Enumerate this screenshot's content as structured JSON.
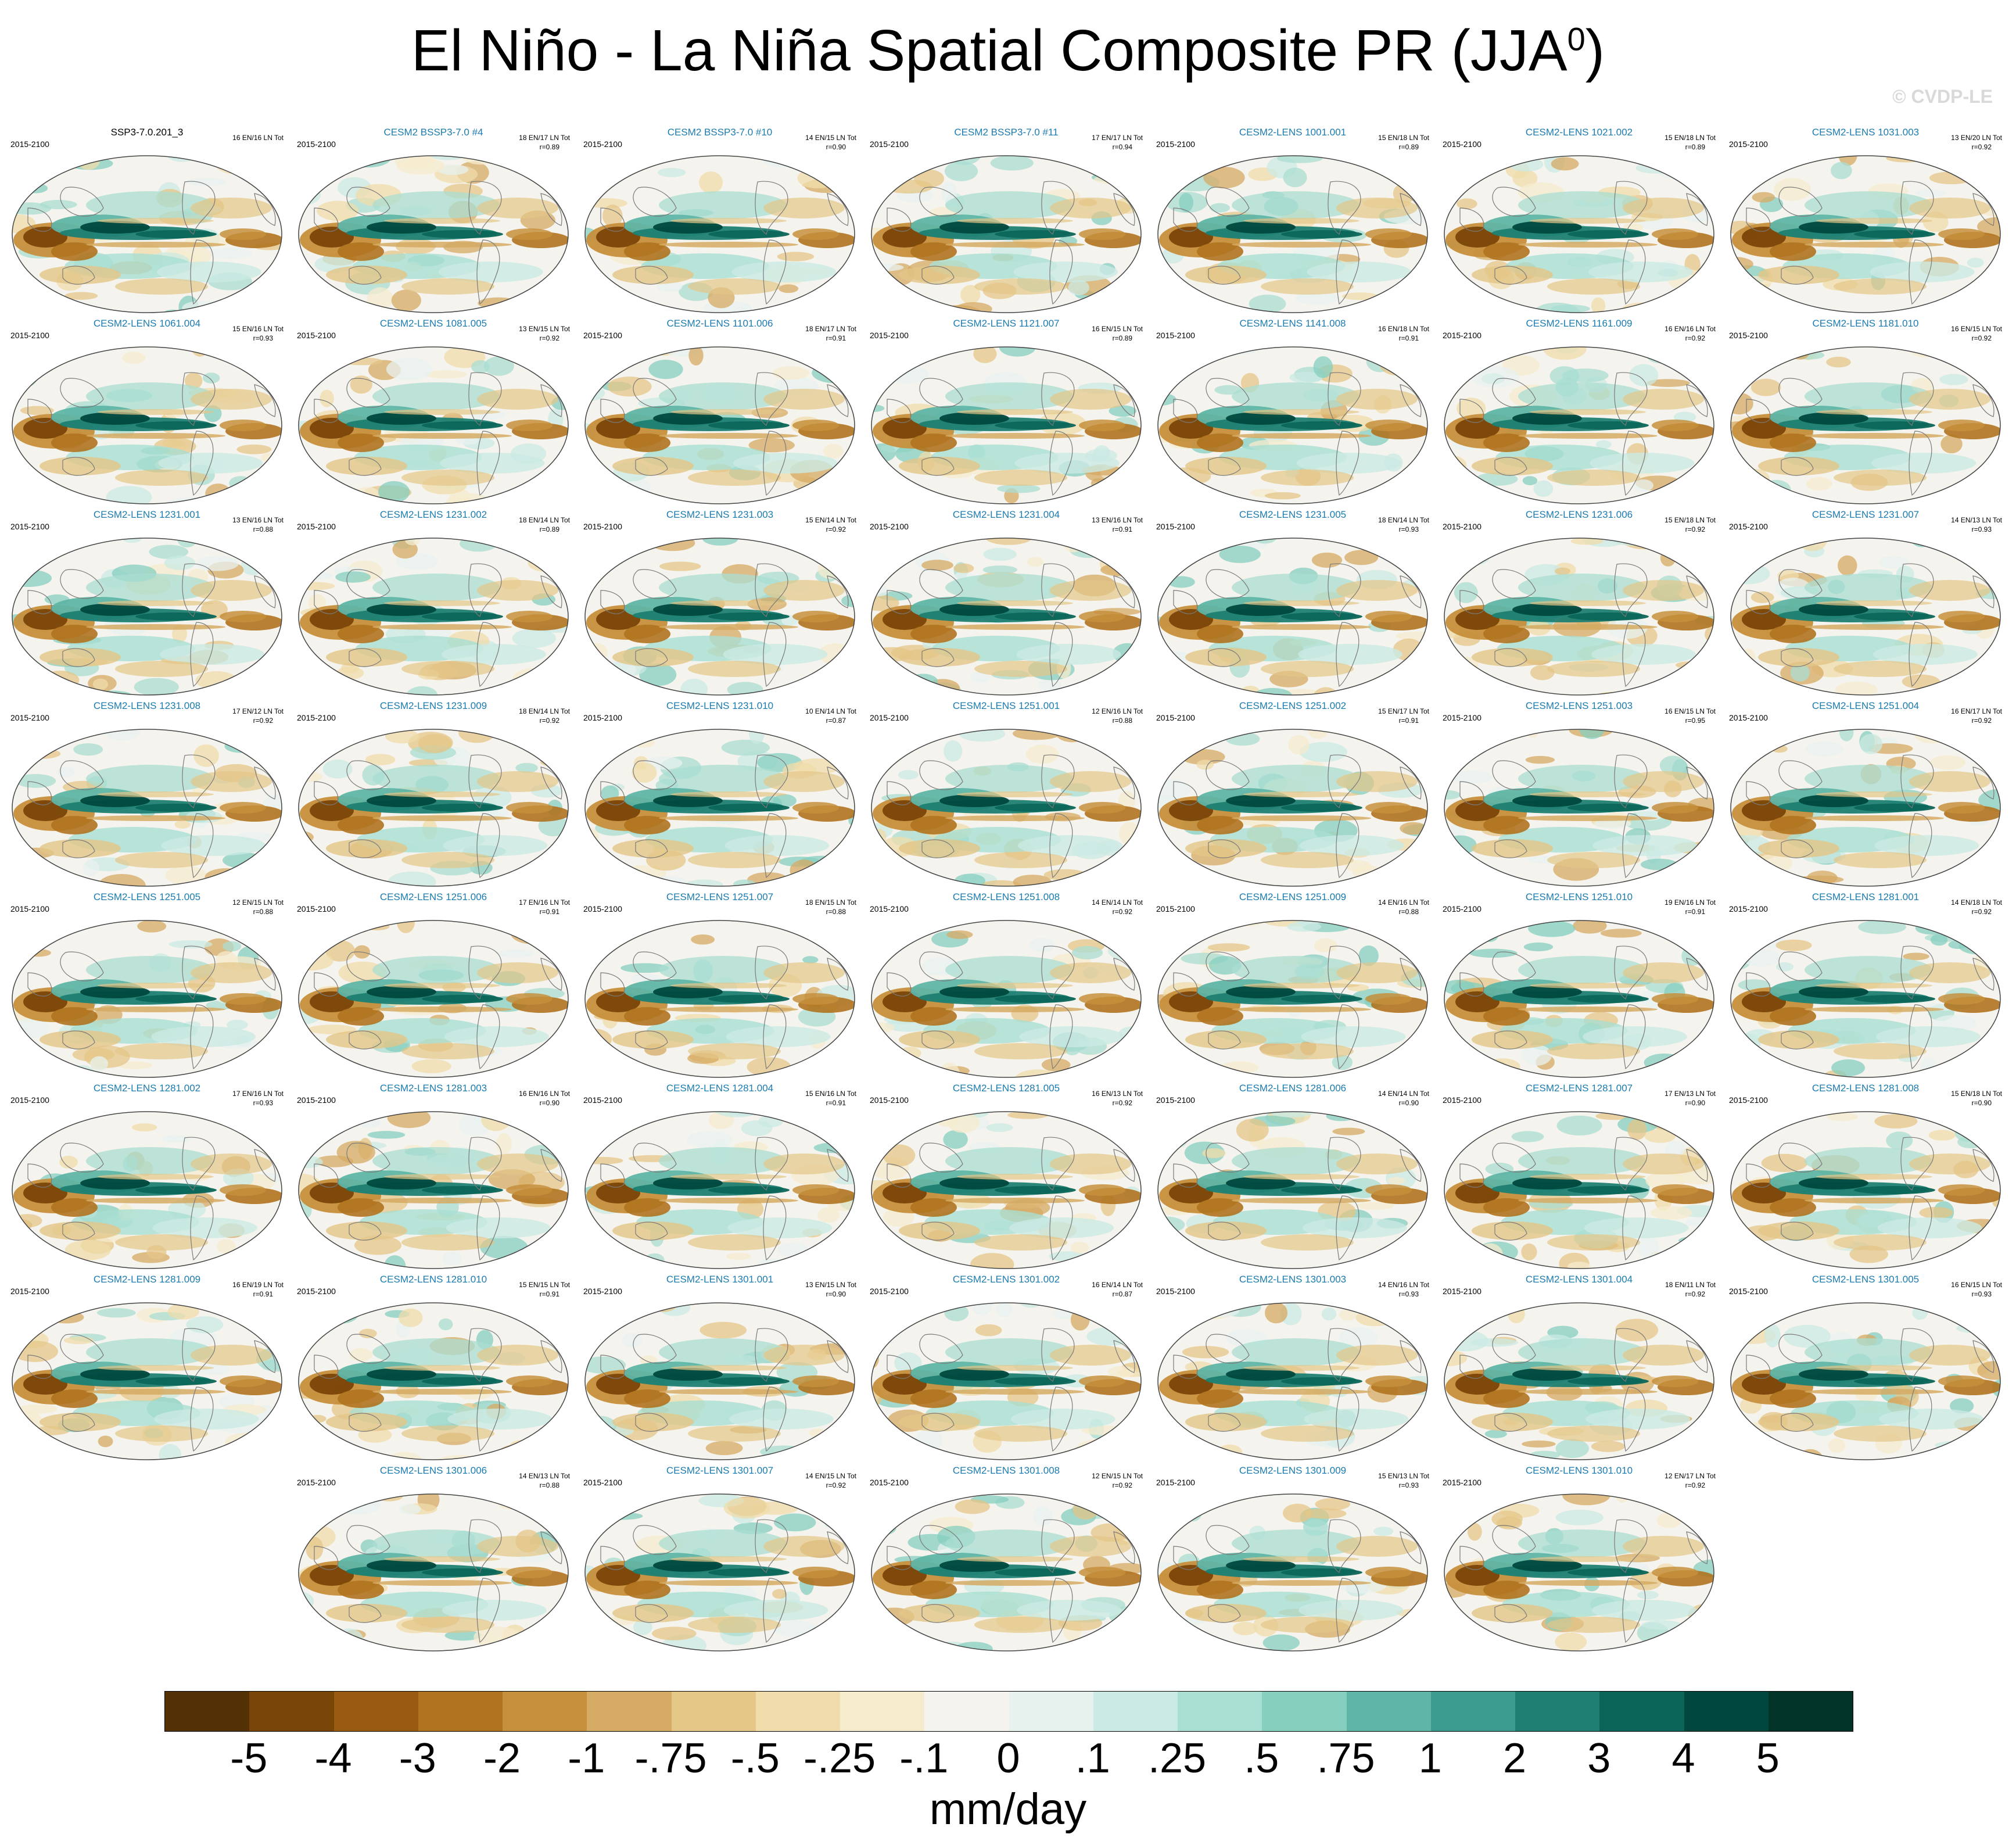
{
  "title": "El Niño - La Niña Spatial Composite PR (JJA",
  "title_superscript": "0",
  "copyright": "© CVDP-LE",
  "units": "mm/day",
  "chart_data": {
    "type": "heatmap",
    "title": "El Niño - La Niña Spatial Composite PR (JJA0)",
    "period": "2015-2100",
    "colorbar_label": "mm/day",
    "colorbar_ticks": [
      "-5",
      "-4",
      "-3",
      "-2",
      "-1",
      "-.75",
      "-.5",
      "-.25",
      "-.1",
      "0",
      ".1",
      ".25",
      ".5",
      ".75",
      "1",
      "2",
      "3",
      "4",
      "5"
    ],
    "colorbar_colors": [
      "#543005",
      "#7a4508",
      "#985a0f",
      "#b0731f",
      "#c68f3c",
      "#d5aa63",
      "#e4c687",
      "#efdcaa",
      "#f5ebcd",
      "#f5f3ed",
      "#e7f2ef",
      "#cbeae3",
      "#a9ded2",
      "#86cfbf",
      "#5fb5a6",
      "#3b9b8e",
      "#1e7f72",
      "#0b6659",
      "#00483d",
      "#013329"
    ],
    "panels": [
      {
        "name": "SSP3-7.0.201_3",
        "counts": "16 EN/16 LN Tot",
        "r": ""
      },
      {
        "name": "CESM2 BSSP3-7.0 #4",
        "counts": "18 EN/17 LN Tot",
        "r": "r=0.89"
      },
      {
        "name": "CESM2 BSSP3-7.0 #10",
        "counts": "14 EN/15 LN Tot",
        "r": "r=0.90"
      },
      {
        "name": "CESM2 BSSP3-7.0 #11",
        "counts": "17 EN/17 LN Tot",
        "r": "r=0.94"
      },
      {
        "name": "CESM2-LENS 1001.001",
        "counts": "15 EN/18 LN Tot",
        "r": "r=0.89"
      },
      {
        "name": "CESM2-LENS 1021.002",
        "counts": "15 EN/18 LN Tot",
        "r": "r=0.89"
      },
      {
        "name": "CESM2-LENS 1031.003",
        "counts": "13 EN/20 LN Tot",
        "r": "r=0.92"
      },
      {
        "name": "CESM2-LENS 1061.004",
        "counts": "15 EN/16 LN Tot",
        "r": "r=0.93"
      },
      {
        "name": "CESM2-LENS 1081.005",
        "counts": "13 EN/15 LN Tot",
        "r": "r=0.92"
      },
      {
        "name": "CESM2-LENS 1101.006",
        "counts": "18 EN/17 LN Tot",
        "r": "r=0.91"
      },
      {
        "name": "CESM2-LENS 1121.007",
        "counts": "16 EN/15 LN Tot",
        "r": "r=0.89"
      },
      {
        "name": "CESM2-LENS 1141.008",
        "counts": "16 EN/18 LN Tot",
        "r": "r=0.91"
      },
      {
        "name": "CESM2-LENS 1161.009",
        "counts": "16 EN/16 LN Tot",
        "r": "r=0.92"
      },
      {
        "name": "CESM2-LENS 1181.010",
        "counts": "16 EN/15 LN Tot",
        "r": "r=0.92"
      },
      {
        "name": "CESM2-LENS 1231.001",
        "counts": "13 EN/16 LN Tot",
        "r": "r=0.88"
      },
      {
        "name": "CESM2-LENS 1231.002",
        "counts": "18 EN/14 LN Tot",
        "r": "r=0.89"
      },
      {
        "name": "CESM2-LENS 1231.003",
        "counts": "15 EN/14 LN Tot",
        "r": "r=0.92"
      },
      {
        "name": "CESM2-LENS 1231.004",
        "counts": "13 EN/16 LN Tot",
        "r": "r=0.91"
      },
      {
        "name": "CESM2-LENS 1231.005",
        "counts": "18 EN/14 LN Tot",
        "r": "r=0.93"
      },
      {
        "name": "CESM2-LENS 1231.006",
        "counts": "15 EN/18 LN Tot",
        "r": "r=0.92"
      },
      {
        "name": "CESM2-LENS 1231.007",
        "counts": "14 EN/13 LN Tot",
        "r": "r=0.93"
      },
      {
        "name": "CESM2-LENS 1231.008",
        "counts": "17 EN/12 LN Tot",
        "r": "r=0.92"
      },
      {
        "name": "CESM2-LENS 1231.009",
        "counts": "18 EN/14 LN Tot",
        "r": "r=0.92"
      },
      {
        "name": "CESM2-LENS 1231.010",
        "counts": "10 EN/14 LN Tot",
        "r": "r=0.87"
      },
      {
        "name": "CESM2-LENS 1251.001",
        "counts": "12 EN/16 LN Tot",
        "r": "r=0.88"
      },
      {
        "name": "CESM2-LENS 1251.002",
        "counts": "15 EN/17 LN Tot",
        "r": "r=0.91"
      },
      {
        "name": "CESM2-LENS 1251.003",
        "counts": "16 EN/15 LN Tot",
        "r": "r=0.95"
      },
      {
        "name": "CESM2-LENS 1251.004",
        "counts": "16 EN/17 LN Tot",
        "r": "r=0.92"
      },
      {
        "name": "CESM2-LENS 1251.005",
        "counts": "12 EN/15 LN Tot",
        "r": "r=0.88"
      },
      {
        "name": "CESM2-LENS 1251.006",
        "counts": "17 EN/16 LN Tot",
        "r": "r=0.91"
      },
      {
        "name": "CESM2-LENS 1251.007",
        "counts": "18 EN/15 LN Tot",
        "r": "r=0.88"
      },
      {
        "name": "CESM2-LENS 1251.008",
        "counts": "14 EN/14 LN Tot",
        "r": "r=0.92"
      },
      {
        "name": "CESM2-LENS 1251.009",
        "counts": "14 EN/16 LN Tot",
        "r": "r=0.88"
      },
      {
        "name": "CESM2-LENS 1251.010",
        "counts": "19 EN/16 LN Tot",
        "r": "r=0.91"
      },
      {
        "name": "CESM2-LENS 1281.001",
        "counts": "14 EN/18 LN Tot",
        "r": "r=0.92"
      },
      {
        "name": "CESM2-LENS 1281.002",
        "counts": "17 EN/16 LN Tot",
        "r": "r=0.93"
      },
      {
        "name": "CESM2-LENS 1281.003",
        "counts": "16 EN/16 LN Tot",
        "r": "r=0.90"
      },
      {
        "name": "CESM2-LENS 1281.004",
        "counts": "15 EN/16 LN Tot",
        "r": "r=0.91"
      },
      {
        "name": "CESM2-LENS 1281.005",
        "counts": "16 EN/13 LN Tot",
        "r": "r=0.92"
      },
      {
        "name": "CESM2-LENS 1281.006",
        "counts": "14 EN/14 LN Tot",
        "r": "r=0.90"
      },
      {
        "name": "CESM2-LENS 1281.007",
        "counts": "17 EN/13 LN Tot",
        "r": "r=0.90"
      },
      {
        "name": "CESM2-LENS 1281.008",
        "counts": "15 EN/18 LN Tot",
        "r": "r=0.90"
      },
      {
        "name": "CESM2-LENS 1281.009",
        "counts": "16 EN/19 LN Tot",
        "r": "r=0.91"
      },
      {
        "name": "CESM2-LENS 1281.010",
        "counts": "15 EN/15 LN Tot",
        "r": "r=0.91"
      },
      {
        "name": "CESM2-LENS 1301.001",
        "counts": "13 EN/15 LN Tot",
        "r": "r=0.90"
      },
      {
        "name": "CESM2-LENS 1301.002",
        "counts": "16 EN/14 LN Tot",
        "r": "r=0.87"
      },
      {
        "name": "CESM2-LENS 1301.003",
        "counts": "14 EN/16 LN Tot",
        "r": "r=0.93"
      },
      {
        "name": "CESM2-LENS 1301.004",
        "counts": "18 EN/11 LN Tot",
        "r": "r=0.92"
      },
      {
        "name": "CESM2-LENS 1301.005",
        "counts": "16 EN/15 LN Tot",
        "r": "r=0.93"
      },
      {
        "name": "CESM2-LENS 1301.006",
        "counts": "14 EN/13 LN Tot",
        "r": "r=0.88"
      },
      {
        "name": "CESM2-LENS 1301.007",
        "counts": "14 EN/15 LN Tot",
        "r": "r=0.92"
      },
      {
        "name": "CESM2-LENS 1301.008",
        "counts": "12 EN/15 LN Tot",
        "r": "r=0.92"
      },
      {
        "name": "CESM2-LENS 1301.009",
        "counts": "15 EN/13 LN Tot",
        "r": "r=0.93"
      },
      {
        "name": "CESM2-LENS 1301.010",
        "counts": "12 EN/17 LN Tot",
        "r": "r=0.92"
      }
    ]
  }
}
